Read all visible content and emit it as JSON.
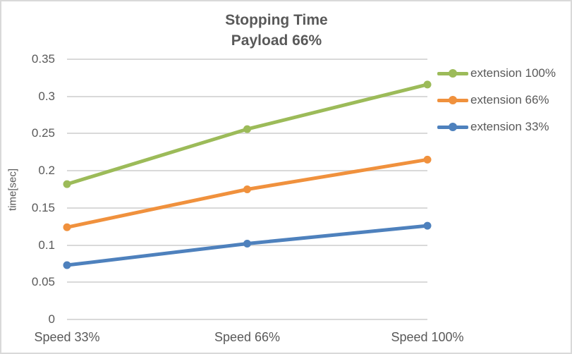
{
  "styles": {
    "text_color": "#595959",
    "gridline_color": "#D9D9D9",
    "border_color": "#D9D9D9",
    "background": "#FFFFFF"
  },
  "chart_data": {
    "type": "line",
    "title": "Stopping Time",
    "subtitle": "Payload 66%",
    "categories": [
      "Speed 33%",
      "Speed 66%",
      "Speed 100%"
    ],
    "series": [
      {
        "name": "extension 100%",
        "color": "#9CBB59",
        "values": [
          0.182,
          0.256,
          0.316
        ]
      },
      {
        "name": "extension 66%",
        "color": "#F0913D",
        "values": [
          0.124,
          0.175,
          0.215
        ]
      },
      {
        "name": "extension 33%",
        "color": "#4E81BD",
        "values": [
          0.073,
          0.102,
          0.126
        ]
      }
    ],
    "xlabel": "",
    "ylabel": "time[sec]",
    "ylim": [
      0,
      0.35
    ],
    "ytick_step": 0.05,
    "grid": true,
    "legend_position": "right",
    "marker": "circle"
  }
}
